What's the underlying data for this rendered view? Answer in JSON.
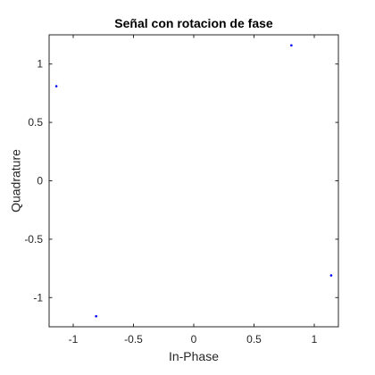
{
  "chart_data": {
    "type": "scatter",
    "title": "Señal con rotacion de fase",
    "xlabel": "In-Phase",
    "ylabel": "Quadrature",
    "xlim": [
      -1.2,
      1.2
    ],
    "ylim": [
      -1.25,
      1.25
    ],
    "xticks": [
      -1,
      -0.5,
      0,
      0.5,
      1
    ],
    "xtick_labels": [
      "-1",
      "-0.5",
      "0",
      "0.5",
      "1"
    ],
    "yticks": [
      -1,
      -0.5,
      0,
      0.5,
      1
    ],
    "ytick_labels": [
      "-1",
      "-0.5",
      "0",
      "0.5",
      "1"
    ],
    "grid": false,
    "legend": "none",
    "series": [
      {
        "x": [
          0.81,
          -1.14,
          -0.81,
          1.14
        ],
        "y": [
          1.16,
          0.81,
          -1.16,
          -0.81
        ],
        "color": "#0000ff"
      }
    ]
  }
}
